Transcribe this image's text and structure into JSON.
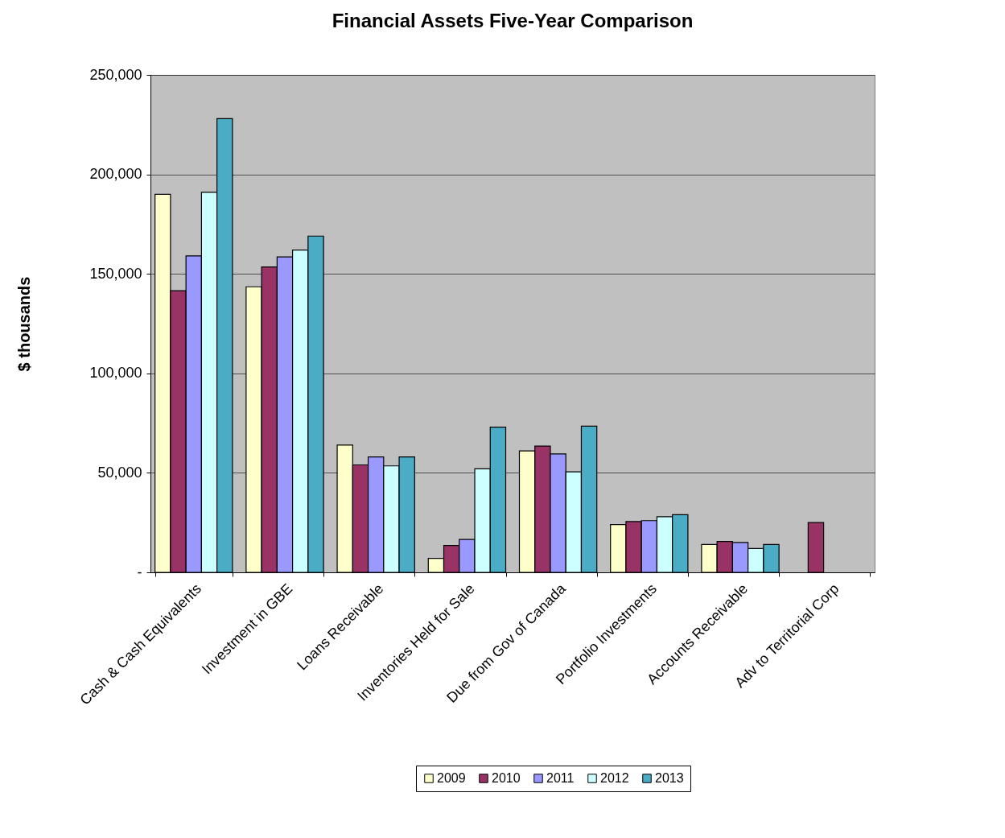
{
  "chart_data": {
    "type": "bar",
    "title": "Financial Assets Five-Year Comparison",
    "ylabel": "$ thousands",
    "categories": [
      "Cash & Cash Equivalents",
      "Investment in GBE",
      "Loans  Receivable",
      "Inventories Held for Sale",
      "Due from Gov of Canada",
      "Portfolio Investments",
      "Accounts Receivable",
      "Adv to Territorial Corp"
    ],
    "series": [
      {
        "name": "2009",
        "color": "#ffffcc",
        "values": [
          190000,
          143500,
          64000,
          7000,
          61000,
          24000,
          14000,
          null
        ]
      },
      {
        "name": "2010",
        "color": "#993366",
        "values": [
          141500,
          153500,
          54000,
          13500,
          63500,
          25500,
          15500,
          25000
        ]
      },
      {
        "name": "2011",
        "color": "#9999ff",
        "values": [
          159000,
          158500,
          58000,
          16500,
          59500,
          26000,
          15000,
          null
        ]
      },
      {
        "name": "2012",
        "color": "#ccffff",
        "values": [
          191000,
          162000,
          53500,
          52000,
          50500,
          28000,
          12000,
          null
        ]
      },
      {
        "name": "2013",
        "color": "#4bacc6",
        "values": [
          228000,
          169000,
          58000,
          73000,
          73500,
          29000,
          14000,
          null
        ]
      }
    ],
    "ylim": [
      0,
      250000
    ],
    "yticks": [
      {
        "value": 0,
        "label": "-"
      },
      {
        "value": 50000,
        "label": "50,000"
      },
      {
        "value": 100000,
        "label": "100,000"
      },
      {
        "value": 150000,
        "label": "150,000"
      },
      {
        "value": 200000,
        "label": "200,000"
      },
      {
        "value": 250000,
        "label": "250,000"
      }
    ],
    "grid": "y",
    "legend": "bottom"
  }
}
